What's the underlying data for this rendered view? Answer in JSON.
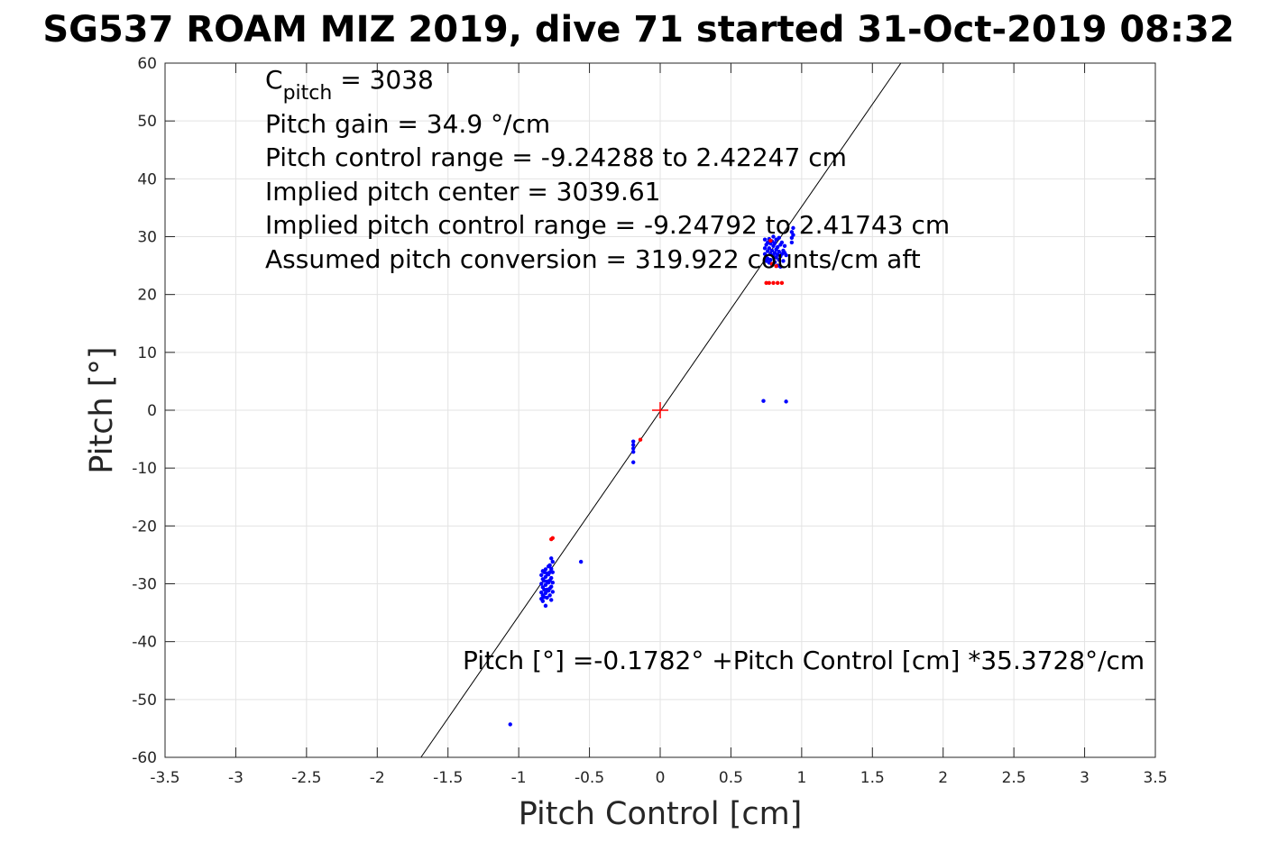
{
  "chart_data": {
    "type": "scatter",
    "title": "SG537 ROAM MIZ 2019, dive 71 started 31-Oct-2019 08:32",
    "xlabel": "Pitch Control [cm]",
    "ylabel": "Pitch [°]",
    "xlim": [
      -3.5,
      3.5
    ],
    "ylim": [
      -60,
      60
    ],
    "xticks": [
      -3.5,
      -3,
      -2.5,
      -2,
      -1.5,
      -1,
      -0.5,
      0,
      0.5,
      1,
      1.5,
      2,
      2.5,
      3,
      3.5
    ],
    "xtick_labels": [
      "-3.5",
      "-3",
      "-2.5",
      "-2",
      "-1.5",
      "-1",
      "-0.5",
      "0",
      "0.5",
      "1",
      "1.5",
      "2",
      "2.5",
      "3",
      "3.5"
    ],
    "yticks": [
      -60,
      -50,
      -40,
      -30,
      -20,
      -10,
      0,
      10,
      20,
      30,
      40,
      50,
      60
    ],
    "ytick_labels": [
      "-60",
      "-50",
      "-40",
      "-30",
      "-20",
      "-10",
      "0",
      "10",
      "20",
      "30",
      "40",
      "50",
      "60"
    ],
    "grid": true,
    "annotations": {
      "c_pitch_prefix": "C",
      "c_pitch_sub": "pitch",
      "c_pitch_value": " = 3038",
      "lines": [
        "Pitch gain = 34.9 °/cm",
        "Pitch control range = -9.24288 to 2.42247 cm",
        "Implied pitch center = 3039.61",
        "Implied pitch control range = -9.24792 to 2.41743 cm",
        "Assumed pitch conversion = 319.922 counts/cm aft"
      ],
      "fit_text": "Pitch [°] =-0.1782° +Pitch Control [cm] *35.3728°/cm"
    },
    "fit": {
      "intercept": -0.1782,
      "slope": 35.3728,
      "color": "#000000"
    },
    "center_marker": {
      "x": 0,
      "y": 0,
      "color": "#ff0000"
    },
    "colors": {
      "blue": "#0000ff",
      "red": "#ff0000",
      "grid": "#e3e3e3",
      "axis": "#262626"
    },
    "series": [
      {
        "color": "#0000ff",
        "points": [
          [
            -1.06,
            -54.3
          ],
          [
            -0.56,
            -26.2
          ],
          [
            -0.84,
            -28.5
          ],
          [
            -0.84,
            -30.0
          ],
          [
            -0.84,
            -31.5
          ],
          [
            -0.84,
            -32.6
          ],
          [
            -0.83,
            -27.8
          ],
          [
            -0.83,
            -29.2
          ],
          [
            -0.83,
            -30.6
          ],
          [
            -0.83,
            -32.0
          ],
          [
            -0.83,
            -33.0
          ],
          [
            -0.82,
            -28.0
          ],
          [
            -0.82,
            -29.5
          ],
          [
            -0.82,
            -31.0
          ],
          [
            -0.82,
            -32.3
          ],
          [
            -0.81,
            -27.5
          ],
          [
            -0.81,
            -28.8
          ],
          [
            -0.81,
            -30.2
          ],
          [
            -0.81,
            -31.6
          ],
          [
            -0.81,
            -33.8
          ],
          [
            -0.8,
            -28.2
          ],
          [
            -0.8,
            -29.6
          ],
          [
            -0.8,
            -31.0
          ],
          [
            -0.8,
            -32.4
          ],
          [
            -0.79,
            -27.0
          ],
          [
            -0.79,
            -28.4
          ],
          [
            -0.79,
            -29.8
          ],
          [
            -0.79,
            -31.2
          ],
          [
            -0.78,
            -26.8
          ],
          [
            -0.78,
            -28.0
          ],
          [
            -0.78,
            -29.4
          ],
          [
            -0.78,
            -30.8
          ],
          [
            -0.78,
            -32.0
          ],
          [
            -0.77,
            -25.6
          ],
          [
            -0.77,
            -27.4
          ],
          [
            -0.77,
            -29.0
          ],
          [
            -0.77,
            -30.5
          ],
          [
            -0.77,
            -32.8
          ],
          [
            -0.76,
            -26.2
          ],
          [
            -0.76,
            -28.0
          ],
          [
            -0.76,
            -29.8
          ],
          [
            -0.76,
            -31.4
          ],
          [
            -0.19,
            -5.4
          ],
          [
            -0.19,
            -6.0
          ],
          [
            -0.19,
            -6.6
          ],
          [
            -0.19,
            -7.2
          ],
          [
            -0.19,
            -9.0
          ],
          [
            0.73,
            1.6
          ],
          [
            0.89,
            1.5
          ],
          [
            0.74,
            29.5
          ],
          [
            0.74,
            28.0
          ],
          [
            0.74,
            27.0
          ],
          [
            0.75,
            28.6
          ],
          [
            0.75,
            26.4
          ],
          [
            0.75,
            25.8
          ],
          [
            0.76,
            29.0
          ],
          [
            0.76,
            27.5
          ],
          [
            0.76,
            26.2
          ],
          [
            0.77,
            28.0
          ],
          [
            0.77,
            25.5
          ],
          [
            0.77,
            29.6
          ],
          [
            0.78,
            27.0
          ],
          [
            0.78,
            28.8
          ],
          [
            0.78,
            26.0
          ],
          [
            0.79,
            27.6
          ],
          [
            0.79,
            29.2
          ],
          [
            0.79,
            25.2
          ],
          [
            0.8,
            28.4
          ],
          [
            0.8,
            26.8
          ],
          [
            0.8,
            30.0
          ],
          [
            0.81,
            27.2
          ],
          [
            0.81,
            25.6
          ],
          [
            0.81,
            28.9
          ],
          [
            0.82,
            26.4
          ],
          [
            0.82,
            29.5
          ],
          [
            0.82,
            27.8
          ],
          [
            0.83,
            28.2
          ],
          [
            0.83,
            25.0
          ],
          [
            0.83,
            26.9
          ],
          [
            0.84,
            29.8
          ],
          [
            0.84,
            27.4
          ],
          [
            0.84,
            26.0
          ],
          [
            0.85,
            28.6
          ],
          [
            0.85,
            26.6
          ],
          [
            0.85,
            24.8
          ],
          [
            0.86,
            27.0
          ],
          [
            0.86,
            29.0
          ],
          [
            0.87,
            25.8
          ],
          [
            0.87,
            27.6
          ],
          [
            0.88,
            27.2
          ],
          [
            0.88,
            28.4
          ],
          [
            0.89,
            26.8
          ],
          [
            0.93,
            30.8
          ],
          [
            0.93,
            29.8
          ],
          [
            0.93,
            29.0
          ],
          [
            0.94,
            31.5
          ],
          [
            0.94,
            30.3
          ]
        ]
      },
      {
        "color": "#ff0000",
        "points": [
          [
            -0.76,
            -22.1
          ],
          [
            -0.77,
            -22.3
          ],
          [
            -0.14,
            -5.1
          ],
          [
            0.75,
            22.0
          ],
          [
            0.77,
            22.0
          ],
          [
            0.8,
            22.0
          ],
          [
            0.83,
            22.0
          ],
          [
            0.86,
            22.0
          ],
          [
            0.79,
            25.3
          ],
          [
            0.82,
            24.9
          ],
          [
            0.78,
            29.3
          ]
        ]
      }
    ]
  }
}
